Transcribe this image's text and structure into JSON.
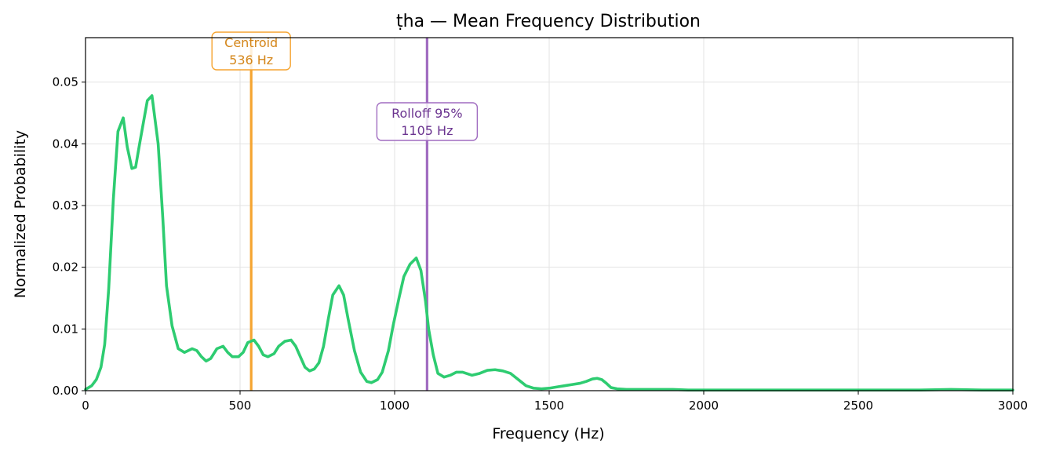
{
  "chart_data": {
    "type": "line",
    "title": "ṭha  —  Mean Frequency Distribution",
    "xlabel": "Frequency (Hz)",
    "ylabel": "Normalized Probability",
    "xlim": [
      0,
      3000
    ],
    "ylim": [
      0,
      0.0572
    ],
    "x_ticks": [
      0,
      500,
      1000,
      1500,
      2000,
      2500,
      3000
    ],
    "y_ticks": [
      0.0,
      0.01,
      0.02,
      0.03,
      0.04,
      0.05
    ],
    "x_tick_labels": [
      "0",
      "500",
      "1000",
      "1500",
      "2000",
      "2500",
      "3000"
    ],
    "y_tick_labels": [
      "0.00",
      "0.01",
      "0.02",
      "0.03",
      "0.04",
      "0.05"
    ],
    "grid": true,
    "colors": {
      "line": "#2ecc71",
      "centroid": "#f5a430",
      "centroid_text": "#d4861a",
      "rolloff": "#a06cc0",
      "rolloff_text": "#6b3490"
    },
    "series": [
      {
        "x": [
          0,
          20,
          35,
          50,
          62,
          75,
          90,
          105,
          122,
          135,
          150,
          162,
          175,
          200,
          215,
          235,
          250,
          262,
          280,
          300,
          320,
          345,
          360,
          375,
          390,
          405,
          425,
          445,
          460,
          475,
          495,
          510,
          525,
          545,
          560,
          575,
          590,
          610,
          625,
          645,
          665,
          680,
          695,
          710,
          725,
          740,
          755,
          770,
          785,
          800,
          820,
          835,
          850,
          870,
          890,
          910,
          925,
          945,
          960,
          980,
          995,
          1015,
          1030,
          1050,
          1070,
          1085,
          1100,
          1110,
          1125,
          1140,
          1160,
          1180,
          1200,
          1220,
          1250,
          1275,
          1300,
          1325,
          1350,
          1375,
          1400,
          1425,
          1450,
          1475,
          1500,
          1525,
          1550,
          1575,
          1600,
          1620,
          1640,
          1655,
          1670,
          1685,
          1700,
          1720,
          1750,
          1800,
          1850,
          1900,
          1950,
          2000,
          2100,
          2200,
          2300,
          2400,
          2500,
          2600,
          2700,
          2800,
          2900,
          3000
        ],
        "values": [
          0.0002,
          0.0008,
          0.0018,
          0.0038,
          0.0075,
          0.0165,
          0.031,
          0.042,
          0.0442,
          0.0395,
          0.036,
          0.0362,
          0.04,
          0.047,
          0.0478,
          0.04,
          0.028,
          0.017,
          0.0105,
          0.0068,
          0.0062,
          0.0068,
          0.0065,
          0.0055,
          0.0048,
          0.0052,
          0.0068,
          0.0072,
          0.0062,
          0.0055,
          0.0055,
          0.0062,
          0.0078,
          0.0082,
          0.0072,
          0.0058,
          0.0055,
          0.006,
          0.0072,
          0.008,
          0.0082,
          0.0072,
          0.0055,
          0.0038,
          0.0032,
          0.0035,
          0.0045,
          0.0072,
          0.0115,
          0.0155,
          0.017,
          0.0155,
          0.0115,
          0.0065,
          0.003,
          0.0015,
          0.0013,
          0.0018,
          0.003,
          0.0065,
          0.0105,
          0.0152,
          0.0185,
          0.0205,
          0.0215,
          0.0195,
          0.0145,
          0.01,
          0.0058,
          0.0028,
          0.0022,
          0.0025,
          0.003,
          0.003,
          0.0025,
          0.0028,
          0.0033,
          0.0034,
          0.0032,
          0.0028,
          0.0018,
          0.0008,
          0.0004,
          0.0003,
          0.0004,
          0.0006,
          0.0008,
          0.001,
          0.0012,
          0.0015,
          0.0019,
          0.002,
          0.0018,
          0.0012,
          0.0005,
          0.0003,
          0.0002,
          0.0002,
          0.0002,
          0.0002,
          0.0001,
          0.0001,
          0.0001,
          0.0001,
          0.0001,
          0.0001,
          0.0001,
          0.0001,
          0.0001,
          0.0002,
          0.0001,
          0.0001
        ]
      }
    ],
    "vlines": [
      {
        "x": 536,
        "label_line1": "Centroid",
        "label_line2": "536 Hz"
      },
      {
        "x": 1105,
        "label_line1": "Rolloff 95%",
        "label_line2": "1105 Hz"
      }
    ]
  }
}
